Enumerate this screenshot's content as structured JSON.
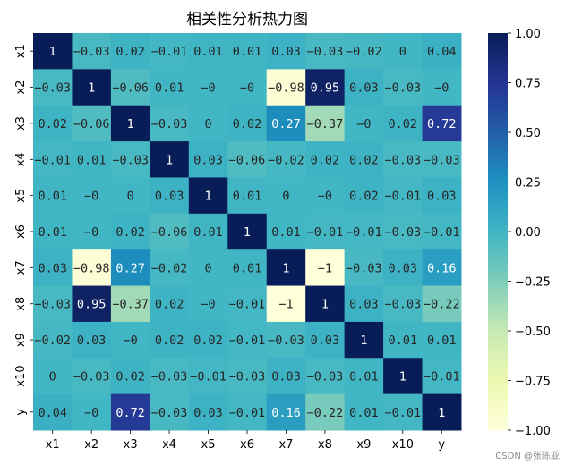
{
  "chart_data": {
    "type": "heatmap",
    "title": "相关性分析热力图",
    "xlabel": "",
    "ylabel": "",
    "rows": [
      "x1",
      "x2",
      "x3",
      "x4",
      "x5",
      "x6",
      "x7",
      "x8",
      "x9",
      "x10",
      "y"
    ],
    "columns": [
      "x1",
      "x2",
      "x3",
      "x4",
      "x5",
      "x6",
      "x7",
      "x8",
      "x9",
      "x10",
      "y"
    ],
    "values": [
      [
        1,
        -0.03,
        0.02,
        -0.01,
        0.01,
        0.01,
        0.03,
        -0.03,
        -0.02,
        0,
        0.04
      ],
      [
        -0.03,
        1,
        -0.06,
        0.01,
        0,
        0,
        -0.98,
        0.95,
        0.03,
        -0.03,
        0
      ],
      [
        0.02,
        -0.06,
        1,
        -0.03,
        0,
        0.02,
        0.27,
        -0.37,
        0,
        0.02,
        0.72
      ],
      [
        -0.01,
        0.01,
        -0.03,
        1,
        0.03,
        -0.06,
        -0.02,
        0.02,
        0.02,
        -0.03,
        -0.03
      ],
      [
        0.01,
        0,
        0,
        0.03,
        1,
        0.01,
        0,
        0,
        0.02,
        -0.01,
        0.03
      ],
      [
        0.01,
        0,
        0.02,
        -0.06,
        0.01,
        1,
        0.01,
        -0.01,
        -0.01,
        -0.03,
        -0.01
      ],
      [
        0.03,
        -0.98,
        0.27,
        -0.02,
        0,
        0.01,
        1,
        -1,
        -0.03,
        0.03,
        0.16
      ],
      [
        -0.03,
        0.95,
        -0.37,
        0.02,
        0,
        -0.01,
        -1,
        1,
        0.03,
        -0.03,
        -0.22
      ],
      [
        -0.02,
        0.03,
        0,
        0.02,
        0.02,
        -0.01,
        -0.03,
        0.03,
        1,
        0.01,
        0.01
      ],
      [
        0,
        -0.03,
        0.02,
        -0.03,
        -0.01,
        -0.03,
        0.03,
        -0.03,
        0.01,
        1,
        -0.01
      ],
      [
        0.04,
        0,
        0.72,
        -0.03,
        0.03,
        -0.01,
        0.16,
        -0.22,
        0.01,
        -0.01,
        1
      ]
    ],
    "colormap": "YlGnBu",
    "vmin": -1,
    "vmax": 1,
    "colorbar_ticks": [
      "-1.00",
      "-0.75",
      "-0.50",
      "-0.25",
      "0.00",
      "0.25",
      "0.50",
      "0.75",
      "1.00"
    ],
    "annotated": true,
    "grid": false
  },
  "watermark": "CSDN @张陈亚"
}
